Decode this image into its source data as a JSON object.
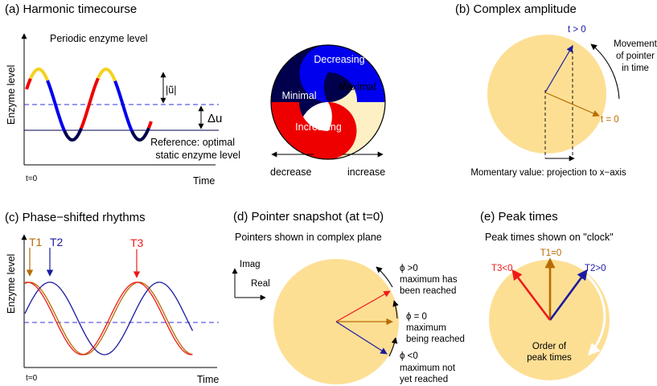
{
  "panels": {
    "a": {
      "title": "(a) Harmonic timecourse",
      "subtitle": "Periodic enzyme level",
      "ylabel": "Enzyme level",
      "xlabel": "Time",
      "t0": "t=0",
      "amp_label": "|ũ|",
      "delta_label": "Δu",
      "ref_line1": "Reference: optimal",
      "ref_line2": "static enzyme level",
      "yin_decreasing": "Decreasing",
      "yin_minimal": "Minimal",
      "yin_maximal": "Maximal",
      "yin_increasing": "Increasing",
      "decrease": "decrease",
      "increase": "increase",
      "colors": {
        "maximal": "#f5d21e",
        "decreasing": "#0000ee",
        "minimal": "#00004c",
        "increasing": "#ee0000",
        "disc_light": "#fdf0c4"
      }
    },
    "b": {
      "title": "(b) Complex amplitude",
      "t_pos": "t > 0",
      "t_zero": "t = 0",
      "movement_l1": "Movement",
      "movement_l2": "of pointer",
      "movement_l3": "in time",
      "caption": "Momentary value: projection to x−axis"
    },
    "c": {
      "title": "(c) Phase−shifted rhythms",
      "ylabel": "Enzyme level",
      "xlabel": "Time",
      "t0": "t=0",
      "t1": "T1",
      "t2": "T2",
      "t3": "T3",
      "colors": {
        "brown": "#b86b00",
        "blue": "#1a1aa0",
        "red": "#ee1a1a"
      }
    },
    "d": {
      "title": "(d) Pointer snapshot (at t=0)",
      "subtitle": "Pointers shown in complex plane",
      "imag": "Imag",
      "real": "Real",
      "pos_phi": "ϕ >0",
      "pos_l1": "maximum has",
      "pos_l2": "been reached",
      "zero_phi": "ϕ = 0",
      "zero_l1": "maximum",
      "zero_l2": "being reached",
      "neg_phi": "ϕ <0",
      "neg_l1": "maximum not",
      "neg_l2": "yet reached"
    },
    "e": {
      "title": "(e) Peak times",
      "subtitle": "Peak times shown on \"clock\"",
      "t1": "T1=0",
      "t2": "T2>0",
      "t3": "T3<0",
      "order_l1": "Order of",
      "order_l2": "peak times"
    }
  },
  "colors": {
    "disc": "#fddf94",
    "dashed_ref": "#3333dd"
  }
}
